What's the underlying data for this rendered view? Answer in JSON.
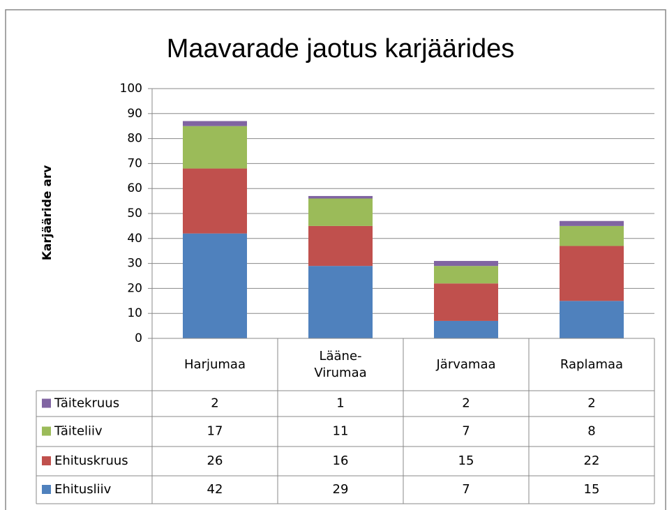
{
  "chart_data": {
    "type": "stacked_bar",
    "title": "Maavarade jaotus karjäärides",
    "y_label": "Karjääride arv",
    "categories": [
      "Harjumaa",
      "Lääne-Virumaa",
      "Järvamaa",
      "Raplamaa"
    ],
    "series": [
      {
        "name": "Ehitusliiv",
        "color": "#4f81bd",
        "values": [
          42,
          29,
          7,
          15
        ]
      },
      {
        "name": "Ehituskruus",
        "color": "#c0504d",
        "values": [
          26,
          16,
          15,
          22
        ]
      },
      {
        "name": "Täiteliiv",
        "color": "#9bbb59",
        "values": [
          17,
          11,
          7,
          8
        ]
      },
      {
        "name": "Täitekruus",
        "color": "#8064a2",
        "values": [
          2,
          1,
          2,
          2
        ]
      }
    ],
    "ylim": [
      0,
      100
    ],
    "yticks": [
      0,
      10,
      20,
      30,
      40,
      50,
      60,
      70,
      80,
      90,
      100
    ],
    "grid": true,
    "data_table": true
  }
}
